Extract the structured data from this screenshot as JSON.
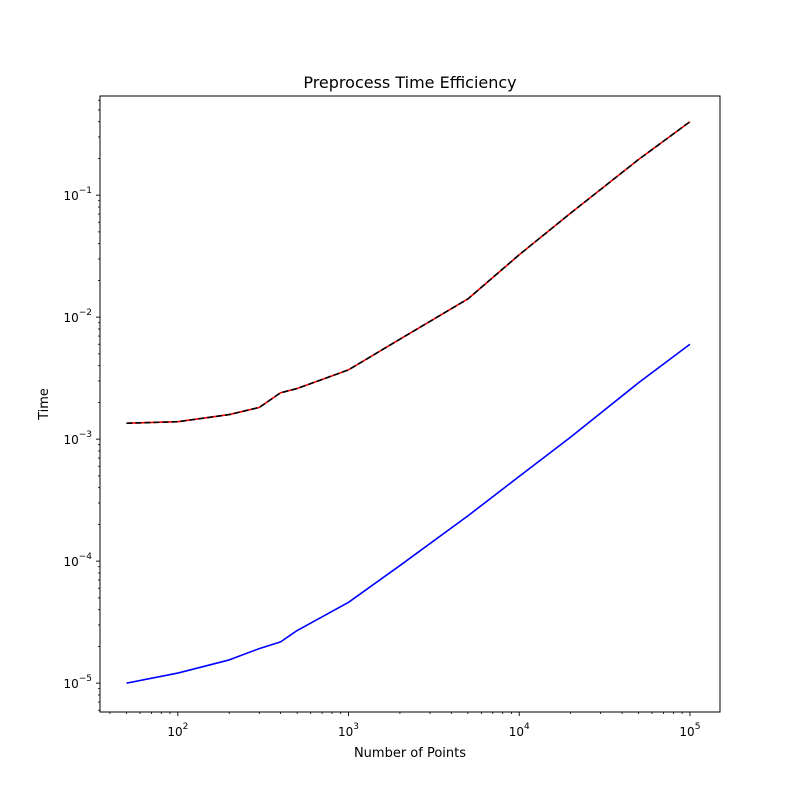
{
  "chart_data": {
    "type": "line",
    "title": "Preprocess Time Efficiency",
    "xlabel": "Number of Points",
    "ylabel": "Time",
    "xscale": "log",
    "yscale": "log",
    "xlim": [
      35,
      150000
    ],
    "ylim": [
      5.8e-06,
      0.65
    ],
    "grid": false,
    "legend": "none",
    "x_ticks": [
      {
        "value": 100,
        "base": "10",
        "exp": "2"
      },
      {
        "value": 1000,
        "base": "10",
        "exp": "3"
      },
      {
        "value": 10000,
        "base": "10",
        "exp": "4"
      },
      {
        "value": 100000,
        "base": "10",
        "exp": "5"
      }
    ],
    "y_ticks": [
      {
        "value": 1e-05,
        "base": "10",
        "exp": "−5"
      },
      {
        "value": 0.0001,
        "base": "10",
        "exp": "−4"
      },
      {
        "value": 0.001,
        "base": "10",
        "exp": "−3"
      },
      {
        "value": 0.01,
        "base": "10",
        "exp": "−2"
      },
      {
        "value": 0.1,
        "base": "10",
        "exp": "−1"
      }
    ],
    "x": [
      50,
      100,
      200,
      300,
      400,
      500,
      1000,
      2000,
      5000,
      10000,
      20000,
      50000,
      100000
    ],
    "series": [
      {
        "color": "#0000ff",
        "dash": "solid",
        "values": [
          1e-05,
          1.21e-05,
          1.55e-05,
          1.92e-05,
          2.18e-05,
          2.7e-05,
          4.6e-05,
          9.2e-05,
          0.000235,
          0.000495,
          0.00104,
          0.0029,
          0.006
        ]
      },
      {
        "color": "#ff0000",
        "dash": "solid",
        "values": [
          0.00135,
          0.00139,
          0.00159,
          0.00182,
          0.0024,
          0.0026,
          0.0037,
          0.0066,
          0.0141,
          0.0325,
          0.0712,
          0.196,
          0.4
        ]
      },
      {
        "color": "#000000",
        "dash": "dashed",
        "values": [
          0.00135,
          0.00139,
          0.00159,
          0.00182,
          0.0024,
          0.0026,
          0.0037,
          0.0066,
          0.0141,
          0.0325,
          0.0712,
          0.196,
          0.4
        ]
      }
    ]
  }
}
